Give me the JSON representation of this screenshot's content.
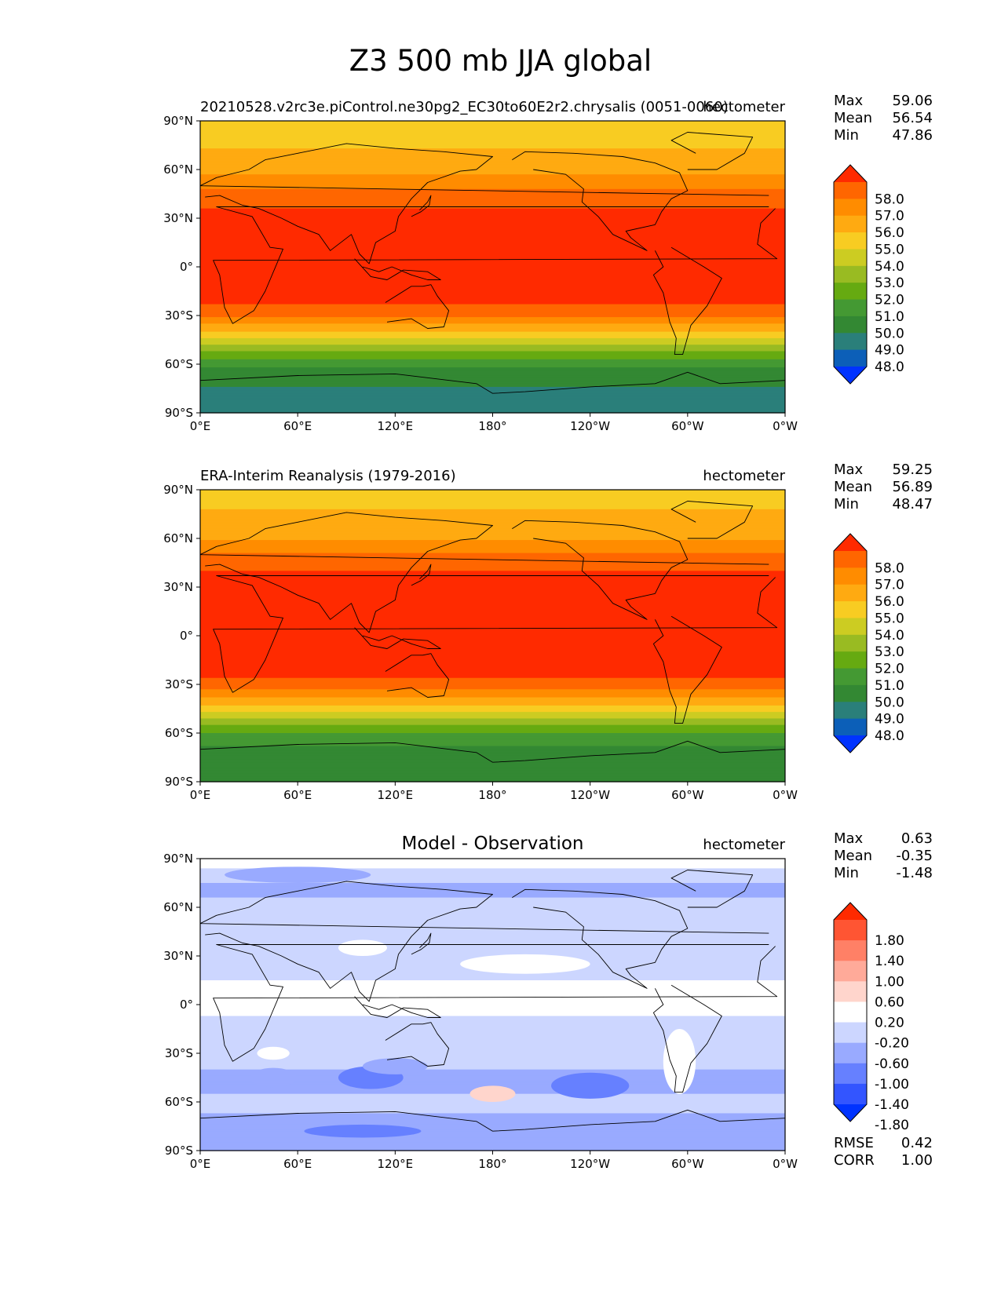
{
  "figure": {
    "title": "Z3 500 mb JJA global"
  },
  "axes": {
    "lat_ticks": [
      "90°N",
      "60°N",
      "30°N",
      "0°",
      "30°S",
      "60°S",
      "90°S"
    ],
    "lon_ticks": [
      "0°E",
      "60°E",
      "120°E",
      "180°",
      "120°W",
      "60°W",
      "0°W"
    ]
  },
  "panels": [
    {
      "id": "model",
      "left_title": "20210528.v2rc3e.piControl.ne30pg2_EC30to60E2r2.chrysalis (0051-0060)",
      "center_title": "",
      "right_title": "hectometer",
      "stats": [
        {
          "label": "Max",
          "value": "59.06"
        },
        {
          "label": "Mean",
          "value": "56.54"
        },
        {
          "label": "Min",
          "value": "47.86"
        }
      ],
      "colorbar": {
        "labels": [
          "58.0",
          "57.0",
          "56.0",
          "55.0",
          "54.0",
          "53.0",
          "52.0",
          "51.0",
          "50.0",
          "49.0",
          "48.0"
        ],
        "colors": [
          "#ff2a00",
          "#ff6600",
          "#ff8c00",
          "#ffaa11",
          "#f8cc22",
          "#cccc22",
          "#99bb22",
          "#66aa11",
          "#449933",
          "#338833",
          "#2a7f7a",
          "#0c5fb8",
          "#0033ff"
        ]
      }
    },
    {
      "id": "obs",
      "left_title": "ERA-Interim Reanalysis (1979-2016)",
      "center_title": "",
      "right_title": "hectometer",
      "stats": [
        {
          "label": "Max",
          "value": "59.25"
        },
        {
          "label": "Mean",
          "value": "56.89"
        },
        {
          "label": "Min",
          "value": "48.47"
        }
      ],
      "colorbar": {
        "labels": [
          "58.0",
          "57.0",
          "56.0",
          "55.0",
          "54.0",
          "53.0",
          "52.0",
          "51.0",
          "50.0",
          "49.0",
          "48.0"
        ],
        "colors": [
          "#ff2a00",
          "#ff6600",
          "#ff8c00",
          "#ffaa11",
          "#f8cc22",
          "#cccc22",
          "#99bb22",
          "#66aa11",
          "#449933",
          "#338833",
          "#2a7f7a",
          "#0c5fb8",
          "#0033ff"
        ]
      }
    },
    {
      "id": "diff",
      "left_title": "",
      "center_title": "Model - Observation",
      "right_title": "hectometer",
      "stats": [
        {
          "label": "Max",
          "value": "0.63"
        },
        {
          "label": "Mean",
          "value": "-0.35"
        },
        {
          "label": "Min",
          "value": "-1.48"
        }
      ],
      "colorbar": {
        "labels": [
          "1.80",
          "1.40",
          "1.00",
          "0.60",
          "0.20",
          "-0.20",
          "-0.60",
          "-1.00",
          "-1.40",
          "-1.80"
        ],
        "colors": [
          "#ff2a00",
          "#ff5533",
          "#ff8066",
          "#ffaa99",
          "#ffd5cc",
          "#ffffff",
          "#ccd6ff",
          "#99aaff",
          "#6680ff",
          "#3355ff",
          "#0033ff"
        ]
      },
      "extra_stats": [
        {
          "label": "RMSE",
          "value": "0.42"
        },
        {
          "label": "CORR",
          "value": "1.00"
        }
      ]
    }
  ],
  "chart_data": [
    {
      "type": "heatmap",
      "title": "20210528.v2rc3e.piControl.ne30pg2_EC30to60E2r2.chrysalis (0051-0060)",
      "units": "hectometer",
      "xlim": [
        0,
        360
      ],
      "ylim": [
        -90,
        90
      ],
      "zonal_profile": {
        "lat": [
          90,
          75,
          60,
          50,
          40,
          30,
          0,
          -20,
          -30,
          -40,
          -50,
          -60,
          -70,
          -80,
          -90
        ],
        "z": [
          54.5,
          54.9,
          55.6,
          56.8,
          57.7,
          58.4,
          58.6,
          58.4,
          57.2,
          55.0,
          52.5,
          50.2,
          49.2,
          48.7,
          48.3
        ]
      },
      "stats": {
        "max": 59.06,
        "mean": 56.54,
        "min": 47.86
      }
    },
    {
      "type": "heatmap",
      "title": "ERA-Interim Reanalysis (1979-2016)",
      "units": "hectometer",
      "xlim": [
        0,
        360
      ],
      "ylim": [
        -90,
        90
      ],
      "zonal_profile": {
        "lat": [
          90,
          75,
          60,
          50,
          40,
          30,
          0,
          -20,
          -30,
          -40,
          -50,
          -60,
          -70,
          -80,
          -90
        ],
        "z": [
          54.6,
          55.1,
          55.9,
          57.1,
          58.0,
          58.6,
          58.8,
          58.6,
          57.6,
          55.6,
          53.2,
          51.0,
          49.8,
          49.4,
          49.1
        ]
      },
      "stats": {
        "max": 59.25,
        "mean": 56.89,
        "min": 48.47
      }
    },
    {
      "type": "heatmap",
      "title": "Model - Observation",
      "units": "hectometer",
      "xlim": [
        0,
        360
      ],
      "ylim": [
        -90,
        90
      ],
      "zonal_profile": {
        "lat": [
          85,
          70,
          50,
          30,
          0,
          -20,
          -40,
          -50,
          -60,
          -70,
          -80
        ],
        "diff": [
          -0.4,
          -0.7,
          -0.2,
          -0.3,
          -0.1,
          -0.4,
          -0.6,
          -0.8,
          -0.4,
          -0.7,
          -1.0
        ]
      },
      "stats": {
        "max": 0.63,
        "mean": -0.35,
        "min": -1.48,
        "rmse": 0.42,
        "corr": 1.0
      }
    }
  ]
}
